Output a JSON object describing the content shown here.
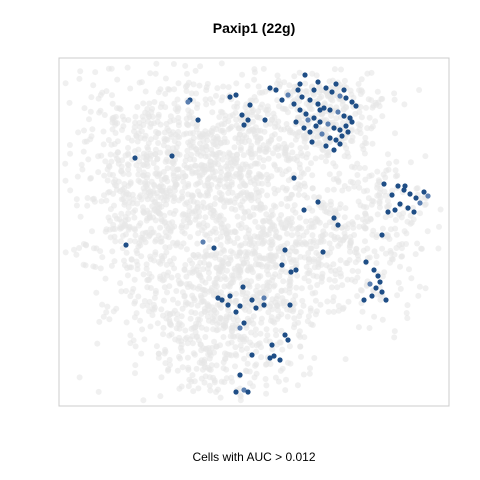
{
  "chart_data": {
    "type": "scatter",
    "title": "Paxip1 (22g)",
    "caption": "Cells with AUC > 0.012",
    "xlabel": "",
    "ylabel": "",
    "axes_visible": false,
    "grid": false,
    "legend": "none",
    "colors": {
      "background_cells": "#e6e6e6",
      "high_auc_cells": "#1f4e86",
      "high_auc_light": "#5b7fb0",
      "panel_border": "#cccccc"
    },
    "series": [
      {
        "name": "",
        "values_note_free": true,
        "points": [
          [
            305,
            75
          ],
          [
            318,
            82
          ],
          [
            326,
            88
          ],
          [
            332,
            92
          ],
          [
            340,
            96
          ],
          [
            346,
            98
          ],
          [
            352,
            102
          ],
          [
            298,
            90
          ],
          [
            302,
            97
          ],
          [
            310,
            100
          ],
          [
            318,
            104
          ],
          [
            324,
            108
          ],
          [
            330,
            110
          ],
          [
            338,
            112
          ],
          [
            344,
            116
          ],
          [
            350,
            118
          ],
          [
            356,
            106
          ],
          [
            294,
            104
          ],
          [
            300,
            110
          ],
          [
            306,
            114
          ],
          [
            314,
            118
          ],
          [
            320,
            122
          ],
          [
            328,
            124
          ],
          [
            334,
            128
          ],
          [
            340,
            130
          ],
          [
            346,
            126
          ],
          [
            352,
            122
          ],
          [
            296,
            122
          ],
          [
            304,
            128
          ],
          [
            310,
            132
          ],
          [
            316,
            126
          ],
          [
            322,
            134
          ],
          [
            330,
            138
          ],
          [
            336,
            140
          ],
          [
            342,
            136
          ],
          [
            348,
            132
          ],
          [
            314,
            90
          ],
          [
            336,
            84
          ],
          [
            344,
            90
          ],
          [
            300,
            84
          ],
          [
            288,
            95
          ],
          [
            282,
            100
          ],
          [
            276,
            90
          ],
          [
            270,
            88
          ],
          [
            312,
            142
          ],
          [
            326,
            146
          ],
          [
            334,
            150
          ],
          [
            340,
            144
          ],
          [
            320,
            110
          ],
          [
            308,
            120
          ],
          [
            236,
            95
          ],
          [
            230,
            97
          ],
          [
            242,
            115
          ],
          [
            248,
            120
          ],
          [
            244,
            125
          ],
          [
            250,
            105
          ],
          [
            265,
            120
          ],
          [
            190,
            100
          ],
          [
            188,
            102
          ],
          [
            198,
            120
          ],
          [
            135,
            158
          ],
          [
            172,
            156
          ],
          [
            294,
            178
          ],
          [
            398,
            186
          ],
          [
            404,
            190
          ],
          [
            410,
            194
          ],
          [
            416,
            198
          ],
          [
            420,
            203
          ],
          [
            392,
            195
          ],
          [
            400,
            204
          ],
          [
            408,
            208
          ],
          [
            414,
            212
          ],
          [
            384,
            184
          ],
          [
            388,
            212
          ],
          [
            395,
            210
          ],
          [
            424,
            192
          ],
          [
            428,
            196
          ],
          [
            405,
            186
          ],
          [
            318,
            202
          ],
          [
            304,
            210
          ],
          [
            334,
            218
          ],
          [
            338,
            225
          ],
          [
            382,
            235
          ],
          [
            323,
            252
          ],
          [
            126,
            245
          ],
          [
            203,
            242
          ],
          [
            214,
            248
          ],
          [
            285,
            250
          ],
          [
            282,
            265
          ],
          [
            291,
            272
          ],
          [
            296,
            270
          ],
          [
            366,
            262
          ],
          [
            374,
            270
          ],
          [
            378,
            276
          ],
          [
            370,
            284
          ],
          [
            376,
            288
          ],
          [
            382,
            292
          ],
          [
            372,
            296
          ],
          [
            386,
            300
          ],
          [
            364,
            300
          ],
          [
            380,
            282
          ],
          [
            243,
            287
          ],
          [
            252,
            300
          ],
          [
            264,
            298
          ],
          [
            264,
            305
          ],
          [
            230,
            296
          ],
          [
            222,
            300
          ],
          [
            240,
            306
          ],
          [
            236,
            312
          ],
          [
            218,
            298
          ],
          [
            290,
            305
          ],
          [
            244,
            323
          ],
          [
            240,
            328
          ],
          [
            285,
            335
          ],
          [
            288,
            340
          ],
          [
            272,
            345
          ],
          [
            252,
            355
          ],
          [
            270,
            358
          ],
          [
            274,
            356
          ],
          [
            280,
            360
          ],
          [
            240,
            375
          ],
          [
            244,
            390
          ],
          [
            236,
            392
          ],
          [
            248,
            392
          ],
          [
            228,
            305
          ],
          [
            256,
            308
          ]
        ]
      }
    ]
  }
}
